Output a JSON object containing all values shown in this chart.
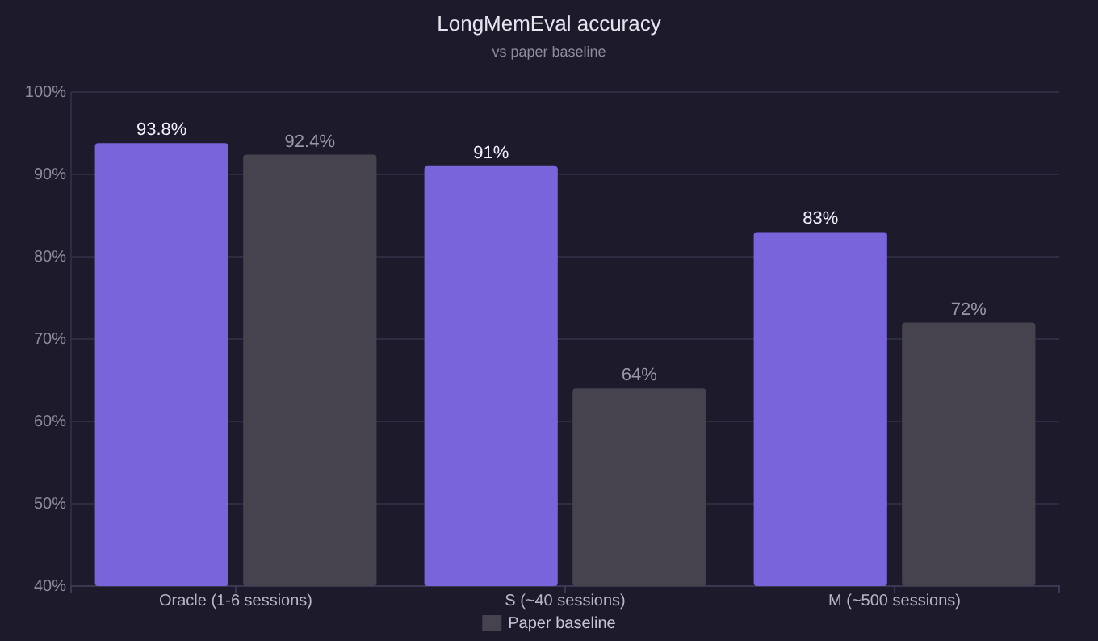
{
  "chart_data": {
    "type": "bar",
    "title": "LongMemEval accuracy",
    "subtitle": "vs paper baseline",
    "categories": [
      "Oracle (1-6 sessions)",
      "S (~40 sessions)",
      "M (~500 sessions)"
    ],
    "series": [
      {
        "color": "#7a64dc",
        "values": [
          93.8,
          91,
          83
        ],
        "value_labels": [
          "93.8%",
          "91%",
          "83%"
        ]
      },
      {
        "name": "Paper baseline",
        "color": "#46434f",
        "values": [
          92.4,
          64,
          72
        ],
        "value_labels": [
          "92.4%",
          "64%",
          "72%"
        ]
      }
    ],
    "ylim": [
      40,
      100
    ],
    "yticks": [
      {
        "value": 40,
        "label": "40%"
      },
      {
        "value": 50,
        "label": "50%"
      },
      {
        "value": 60,
        "label": "60%"
      },
      {
        "value": 70,
        "label": "70%"
      },
      {
        "value": 80,
        "label": "80%"
      },
      {
        "value": 90,
        "label": "90%"
      },
      {
        "value": 100,
        "label": "100%"
      }
    ],
    "grid": "y",
    "legend": "bottom"
  }
}
